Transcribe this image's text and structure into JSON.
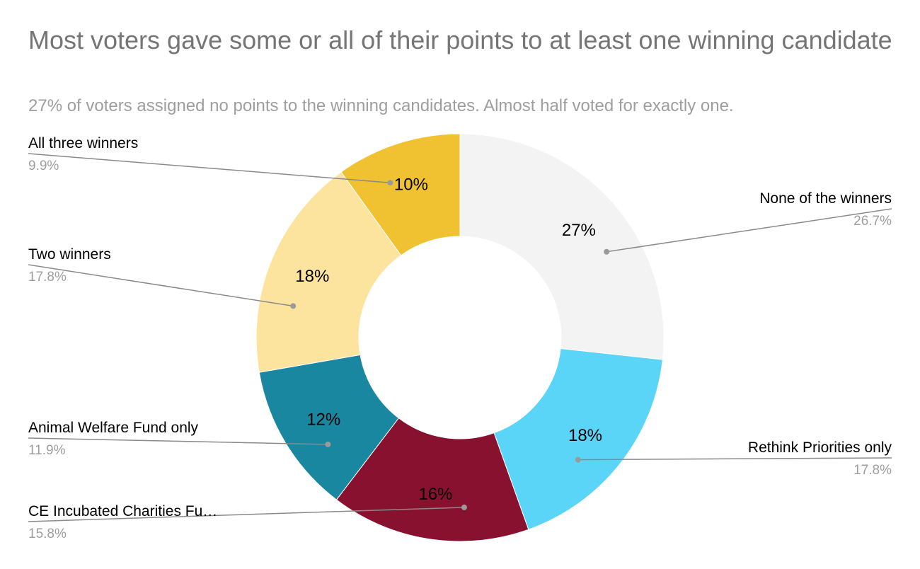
{
  "chart_data": {
    "type": "pie",
    "title": "Most voters gave some or all of their points to at least one winning candidate",
    "subtitle": "27% of voters assigned no points to the winning candidates. Almost half voted for exactly one.",
    "slices": [
      {
        "label": "None of the winners",
        "value": 26.7,
        "slice_label": "27%",
        "legend_pct": "26.7%",
        "color": "#f3f3f3"
      },
      {
        "label": "Rethink Priorities only",
        "value": 17.8,
        "slice_label": "18%",
        "legend_pct": "17.8%",
        "color": "#5bd5f7"
      },
      {
        "label": "CE Incubated Charities Fu…",
        "value": 15.8,
        "slice_label": "16%",
        "legend_pct": "15.8%",
        "color": "#88112f"
      },
      {
        "label": "Animal Welfare Fund only",
        "value": 11.9,
        "slice_label": "12%",
        "legend_pct": "11.9%",
        "color": "#1a87a1"
      },
      {
        "label": "Two winners",
        "value": 17.8,
        "slice_label": "18%",
        "legend_pct": "17.8%",
        "color": "#fde49e"
      },
      {
        "label": "All three winners",
        "value": 9.9,
        "slice_label": "10%",
        "legend_pct": "9.9%",
        "color": "#f0c232"
      }
    ],
    "donut": true,
    "start": "top, clockwise",
    "legend": "labels with leader lines"
  }
}
